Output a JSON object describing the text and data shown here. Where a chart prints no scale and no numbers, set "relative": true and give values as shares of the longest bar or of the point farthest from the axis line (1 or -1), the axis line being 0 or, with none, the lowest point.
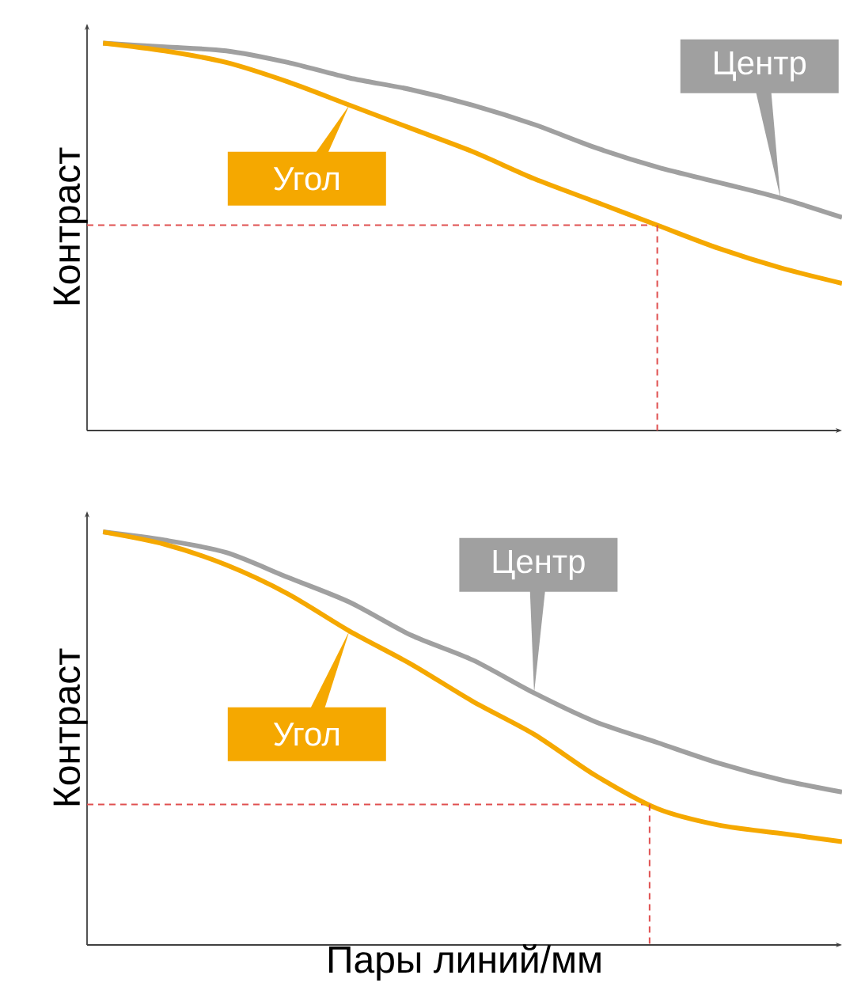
{
  "chart_data": [
    {
      "type": "line",
      "relative": true,
      "ylabel": "Контраст",
      "categories": [
        null,
        null,
        null,
        null,
        null,
        null,
        null,
        null,
        null,
        null,
        null,
        null,
        null
      ],
      "series": [
        {
          "name": "Центр",
          "color": "#a0a0a0",
          "values": [
            1,
            0.99,
            0.98,
            0.95,
            0.91,
            0.88,
            0.84,
            0.79,
            0.73,
            0.68,
            0.64,
            0.6,
            0.55
          ]
        },
        {
          "name": "Угол",
          "color": "#f5a800",
          "values": [
            1,
            0.98,
            0.95,
            0.9,
            0.84,
            0.78,
            0.72,
            0.65,
            0.59,
            0.53,
            0.47,
            0.42,
            0.38
          ]
        }
      ],
      "ref_lines": [
        {
          "axis": "y",
          "value": 0.53,
          "color": "#e05050",
          "line_style": "dashed"
        }
      ]
    },
    {
      "type": "line",
      "relative": true,
      "xlabel": "Пары линий/мм",
      "ylabel": "Контраст",
      "categories": [
        null,
        null,
        null,
        null,
        null,
        null,
        null,
        null,
        null,
        null,
        null,
        null,
        null
      ],
      "series": [
        {
          "name": "Центр",
          "color": "#a0a0a0",
          "values": [
            1,
            0.98,
            0.95,
            0.89,
            0.83,
            0.75,
            0.69,
            0.61,
            0.54,
            0.49,
            0.44,
            0.4,
            0.37
          ]
        },
        {
          "name": "Угол",
          "color": "#f5a800",
          "values": [
            1,
            0.97,
            0.92,
            0.85,
            0.76,
            0.68,
            0.59,
            0.51,
            0.41,
            0.33,
            0.29,
            0.27,
            0.25
          ]
        }
      ],
      "ref_lines": [
        {
          "axis": "y",
          "value": 0.34,
          "color": "#e05050",
          "line_style": "dashed"
        }
      ]
    }
  ]
}
